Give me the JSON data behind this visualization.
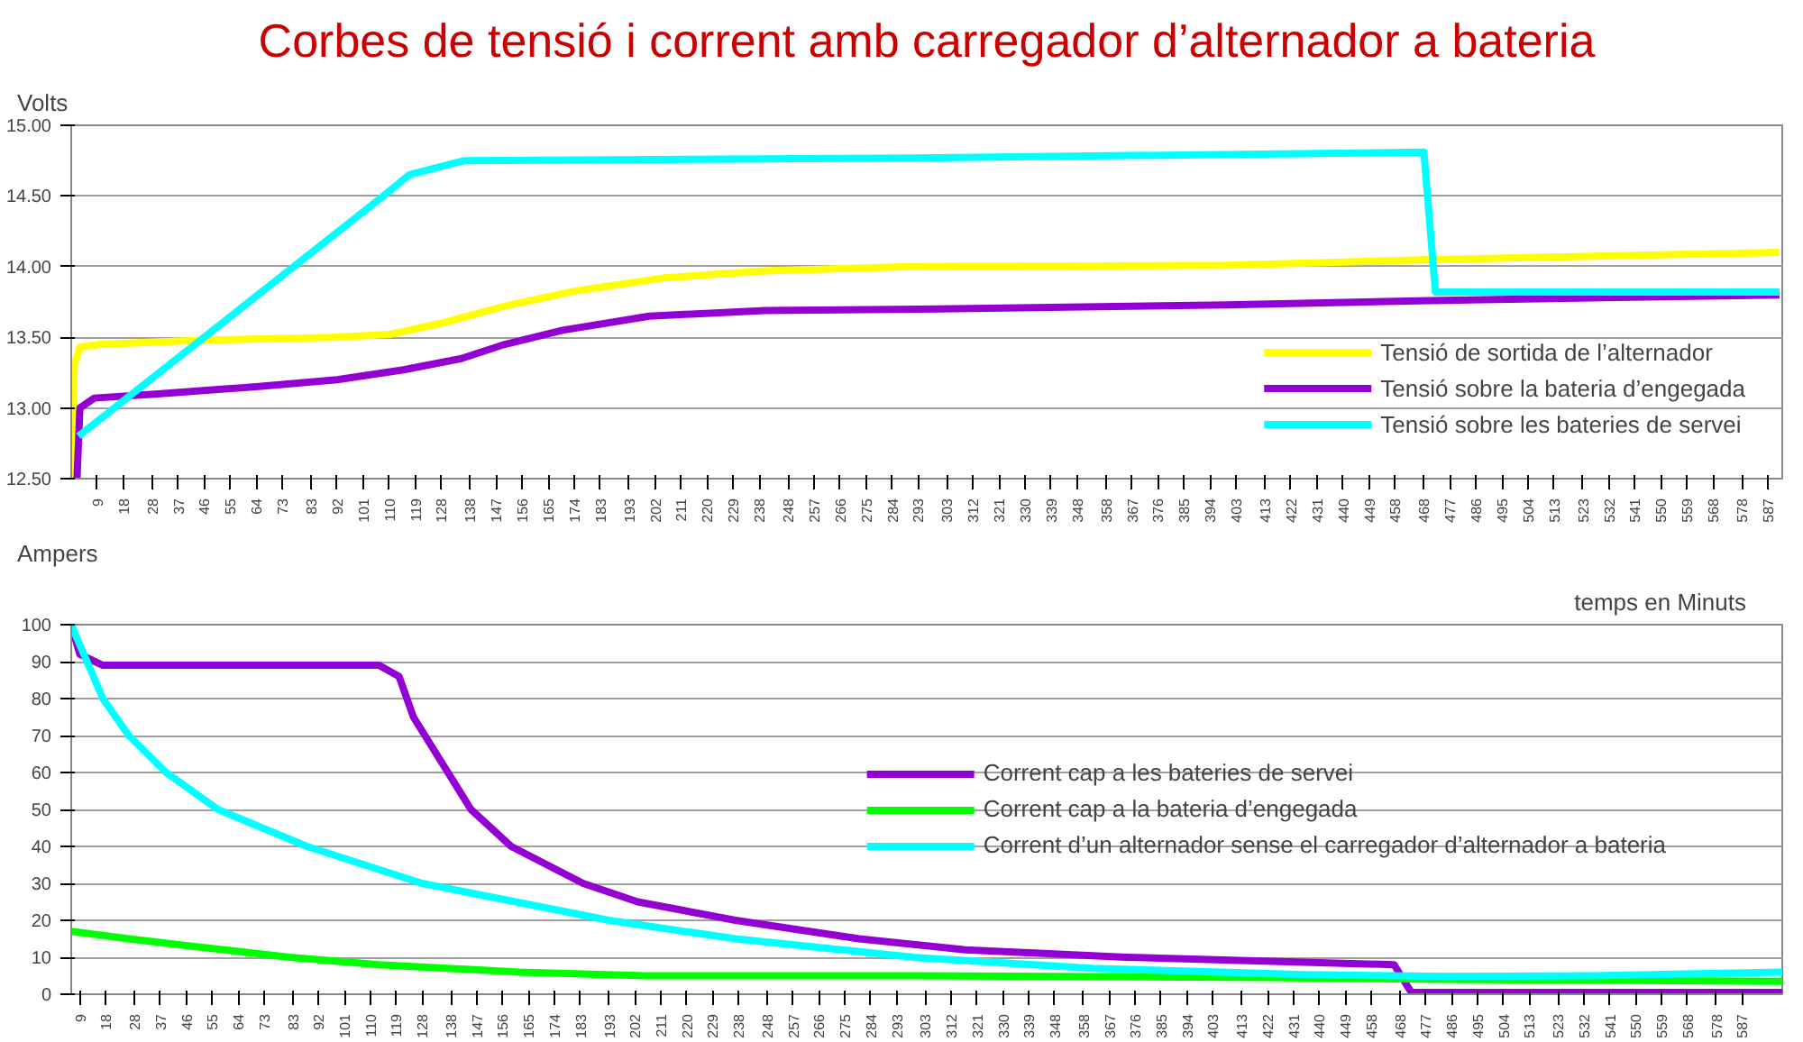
{
  "chart_data": [
    {
      "type": "line",
      "title": "Corbes de tensió i corrent amb carregador d’alternador a bateria",
      "ylabel": "Volts",
      "xlim": [
        0,
        592
      ],
      "ylim": [
        12.5,
        15
      ],
      "yticks": [
        {
          "value": 12.5,
          "label": "12.50"
        },
        {
          "value": 13,
          "label": "13.00"
        },
        {
          "value": 13.5,
          "label": "13.50"
        },
        {
          "value": 14,
          "label": "14.00"
        },
        {
          "value": 14.5,
          "label": "14.50"
        },
        {
          "value": 15,
          "label": "15.00"
        }
      ],
      "xticks": [
        9,
        18,
        28,
        37,
        46,
        55,
        64,
        73,
        83,
        92,
        101,
        110,
        119,
        128,
        138,
        147,
        156,
        165,
        174,
        183,
        193,
        202,
        211,
        220,
        229,
        238,
        248,
        257,
        266,
        275,
        284,
        293,
        303,
        312,
        321,
        330,
        339,
        348,
        358,
        367,
        376,
        385,
        394,
        403,
        413,
        422,
        431,
        440,
        449,
        458,
        468,
        477,
        486,
        495,
        504,
        513,
        523,
        532,
        541,
        550,
        559,
        568,
        578,
        587
      ],
      "grid": "y",
      "legend": "bottom right",
      "series": [
        {
          "name": "Tensió de sortida de l’alternador",
          "color": "#ffff00",
          "x": [
            0.5,
            1,
            3,
            10,
            46,
            90,
            110,
            128,
            150,
            175,
            205,
            240,
            290,
            400,
            470,
            591
          ],
          "values": [
            12.5,
            13.3,
            13.43,
            13.45,
            13.48,
            13.5,
            13.52,
            13.6,
            13.72,
            13.83,
            13.92,
            13.97,
            14.0,
            14.01,
            14.05,
            14.1
          ]
        },
        {
          "name": "Tensió sobre la bateria d’engegada",
          "color": "#9400d3",
          "x": [
            2,
            3,
            8,
            30,
            64,
            92,
            115,
            135,
            150,
            170,
            200,
            240,
            300,
            400,
            470,
            591
          ],
          "values": [
            12.5,
            13.0,
            13.07,
            13.1,
            13.15,
            13.2,
            13.27,
            13.35,
            13.45,
            13.55,
            13.65,
            13.69,
            13.7,
            13.73,
            13.76,
            13.8
          ]
        },
        {
          "name": "Tensió sobre les bateries de servei",
          "color": "#00ffff",
          "x": [
            2.5,
            108,
            117,
            136,
            300,
            468,
            472,
            591
          ],
          "values": [
            12.8,
            14.5,
            14.65,
            14.75,
            14.77,
            14.81,
            13.82,
            13.82
          ]
        }
      ]
    },
    {
      "type": "line",
      "ylabel": "Ampers",
      "xlabel": "temps en Minuts",
      "xlim": [
        6,
        601
      ],
      "ylim": [
        0,
        100
      ],
      "yticks": [
        0,
        10,
        20,
        30,
        40,
        50,
        60,
        70,
        80,
        90,
        100
      ],
      "xticks": [
        9,
        18,
        28,
        37,
        46,
        55,
        64,
        73,
        83,
        92,
        101,
        110,
        119,
        128,
        138,
        147,
        156,
        165,
        174,
        183,
        193,
        202,
        211,
        220,
        229,
        238,
        248,
        257,
        266,
        275,
        284,
        293,
        303,
        312,
        321,
        330,
        339,
        348,
        358,
        367,
        376,
        385,
        394,
        403,
        413,
        422,
        431,
        440,
        449,
        458,
        468,
        477,
        486,
        495,
        504,
        513,
        523,
        532,
        541,
        550,
        559,
        568,
        578,
        587
      ],
      "grid": "y",
      "legend": "right",
      "series": [
        {
          "name": "Corrent cap a les bateries de servei",
          "color": "#9400d3",
          "x": [
            6,
            9,
            17,
            113,
            120,
            125,
            137,
            145,
            159,
            184,
            203,
            237,
            280,
            317,
            373,
            466,
            472,
            601
          ],
          "values": [
            100,
            92,
            89,
            89,
            86,
            75,
            60,
            50,
            40,
            30,
            25,
            20,
            15,
            12,
            10,
            8,
            0.5,
            0.5
          ]
        },
        {
          "name": "Corrent cap a la bateria d’engegada",
          "color": "#00ff00",
          "x": [
            6,
            26,
            48,
            82,
            113,
            162,
            206,
            299,
            423,
            485,
            601
          ],
          "values": [
            17,
            15,
            13,
            10,
            8,
            6,
            5,
            5,
            4.5,
            4,
            3.5
          ]
        },
        {
          "name": "Corrent d’un alternador sense el carregador d’alternador a bateria",
          "color": "#00ffff",
          "x": [
            6,
            17,
            26,
            39,
            57,
            88,
            128,
            193,
            237,
            299,
            361,
            435,
            485,
            534,
            601
          ],
          "values": [
            100,
            80,
            70,
            60,
            50,
            40,
            30,
            20,
            15,
            10,
            7,
            5.3,
            4.8,
            5,
            6
          ]
        }
      ]
    }
  ]
}
